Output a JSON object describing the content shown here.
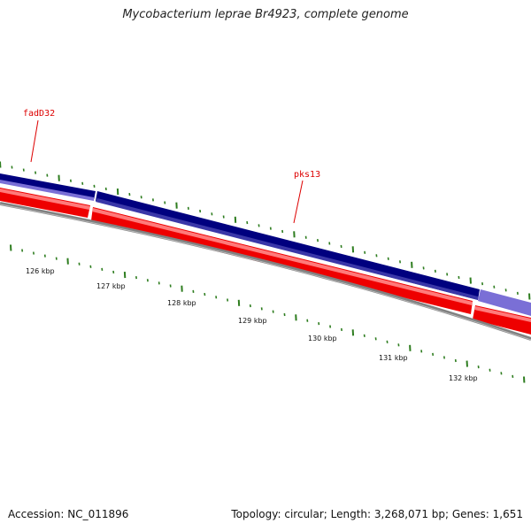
{
  "title": "Mycobacterium leprae Br4923, complete genome",
  "footer": {
    "accession": "Accession: NC_011896",
    "summary": "Topology: circular; Length: 3,268,071 bp; Genes: 1,651"
  },
  "colors": {
    "forward_cds": "#00007f",
    "forward_cds_light": "#7a6fd6",
    "reverse_cds": "#ee0000",
    "backbone": "#808080",
    "tick": "#2e7d1f",
    "gene_label": "#dd0000"
  },
  "genes": [
    {
      "name": "fadD32",
      "strand": "forward"
    },
    {
      "name": "pks13",
      "strand": "forward"
    }
  ],
  "scale_labels": [
    "126 kbp",
    "127 kbp",
    "128 kbp",
    "129 kbp",
    "130 kbp",
    "131 kbp",
    "132 kbp"
  ]
}
